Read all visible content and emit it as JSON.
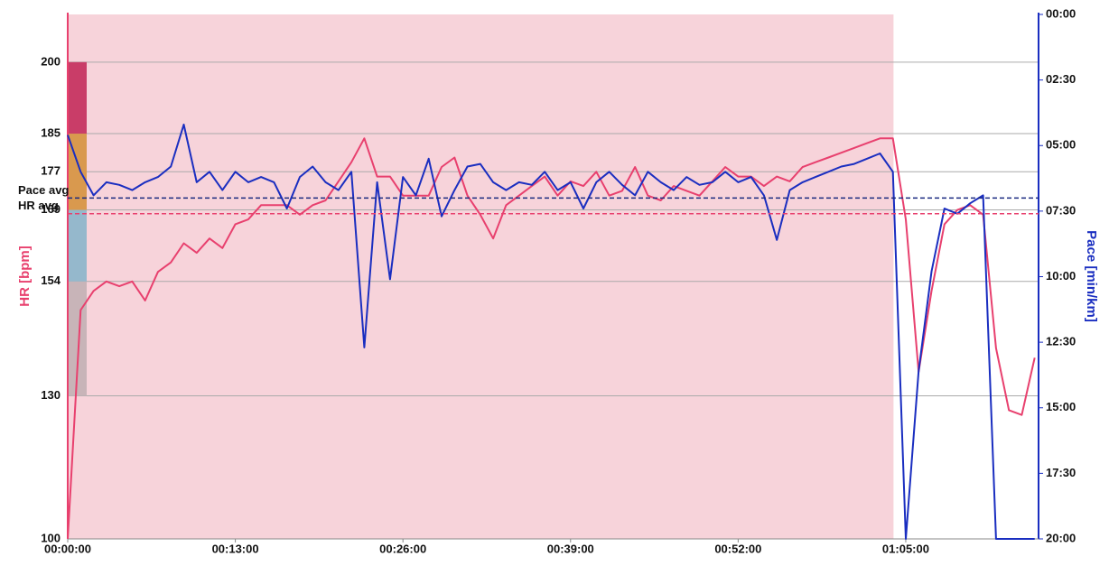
{
  "chart_data": {
    "type": "line",
    "x": [
      0,
      1,
      2,
      3,
      4,
      5,
      6,
      7,
      8,
      9,
      10,
      11,
      12,
      13,
      14,
      15,
      16,
      17,
      18,
      19,
      20,
      21,
      22,
      23,
      24,
      25,
      26,
      27,
      28,
      29,
      30,
      31,
      32,
      33,
      34,
      35,
      36,
      37,
      38,
      39,
      40,
      41,
      42,
      43,
      44,
      45,
      46,
      47,
      48,
      49,
      50,
      51,
      52,
      53,
      54,
      55,
      56,
      57,
      58,
      59,
      60,
      61,
      62,
      63,
      64,
      65,
      66,
      67,
      68,
      69,
      70,
      71,
      72,
      73,
      74,
      75
    ],
    "xlim": [
      0,
      75.3
    ],
    "xticks": [
      {
        "value": 0,
        "label": "00:00:00"
      },
      {
        "value": 13,
        "label": "00:13:00"
      },
      {
        "value": 26,
        "label": "00:26:00"
      },
      {
        "value": 39,
        "label": "00:39:00"
      },
      {
        "value": 52,
        "label": "00:52:00"
      },
      {
        "value": 65,
        "label": "01:05:00"
      }
    ],
    "ylim": [
      100,
      210
    ],
    "yticks": [
      100,
      130,
      154,
      169,
      177,
      185,
      200
    ],
    "y2lim": [
      20,
      0
    ],
    "y2ticks": [
      {
        "value": 0,
        "label": "00:00"
      },
      {
        "value": 2.5,
        "label": "02:30"
      },
      {
        "value": 5,
        "label": "05:00"
      },
      {
        "value": 7.5,
        "label": "07:30"
      },
      {
        "value": 10,
        "label": "10:00"
      },
      {
        "value": 12.5,
        "label": "12:30"
      },
      {
        "value": 15,
        "label": "15:00"
      },
      {
        "value": 17.5,
        "label": "17:30"
      },
      {
        "value": 20,
        "label": "20:00"
      }
    ],
    "ylabel": "HR [bpm]",
    "y2label": "Pace [min/km]",
    "grid": true,
    "highlight_xrange": [
      0,
      64.05
    ],
    "highlight_color": "#f7d3da",
    "zones": [
      {
        "from": 130,
        "to": 154,
        "color": "#c8b4b8"
      },
      {
        "from": 154,
        "to": 169,
        "color": "#95b8cc"
      },
      {
        "from": 169,
        "to": 185,
        "color": "#d9994e"
      },
      {
        "from": 185,
        "to": 200,
        "color": "#c93d68"
      }
    ],
    "avg_lines": [
      {
        "label": "Pace avg",
        "value": 7.0,
        "axis": "y2",
        "color": "#1a2a80"
      },
      {
        "label": "HR avg",
        "value": 168.2,
        "axis": "y",
        "color": "#e8406e"
      }
    ],
    "series": [
      {
        "name": "HR",
        "color": "#e8406e",
        "axis": "y",
        "values": [
          100,
          148,
          152,
          154,
          153,
          154,
          150,
          156,
          158,
          162,
          160,
          163,
          161,
          166,
          167,
          170,
          170,
          170,
          168,
          170,
          171,
          175,
          179,
          184,
          176,
          176,
          172,
          172,
          172,
          178,
          180,
          172,
          168,
          163,
          170,
          172,
          174,
          176,
          172,
          175,
          174,
          177,
          172,
          173,
          178,
          172,
          171,
          174,
          173,
          172,
          175,
          178,
          176,
          176,
          174,
          176,
          175,
          178,
          179,
          180,
          181,
          182,
          183,
          184,
          184,
          167,
          135,
          152,
          166,
          169,
          170,
          168,
          140,
          127,
          126,
          138
        ]
      },
      {
        "name": "Pace",
        "color": "#1a2ec0",
        "axis": "y2",
        "values": [
          4.6,
          6.0,
          6.9,
          6.4,
          6.5,
          6.7,
          6.4,
          6.2,
          5.8,
          4.2,
          6.4,
          6.0,
          6.7,
          6.0,
          6.4,
          6.2,
          6.4,
          7.4,
          6.2,
          5.8,
          6.4,
          6.7,
          6.0,
          12.7,
          6.4,
          10.1,
          6.2,
          6.9,
          5.5,
          7.7,
          6.7,
          5.8,
          5.7,
          6.4,
          6.7,
          6.4,
          6.5,
          6.0,
          6.7,
          6.4,
          7.4,
          6.4,
          6.0,
          6.5,
          6.9,
          6.0,
          6.4,
          6.7,
          6.2,
          6.5,
          6.4,
          6.0,
          6.4,
          6.2,
          6.9,
          8.6,
          6.7,
          6.4,
          6.2,
          6.0,
          5.8,
          5.7,
          5.5,
          5.3,
          6.0,
          20.0,
          13.6,
          9.8,
          7.4,
          7.6,
          7.2,
          6.9,
          20.0,
          20.0,
          20.0,
          20.0
        ]
      }
    ]
  }
}
